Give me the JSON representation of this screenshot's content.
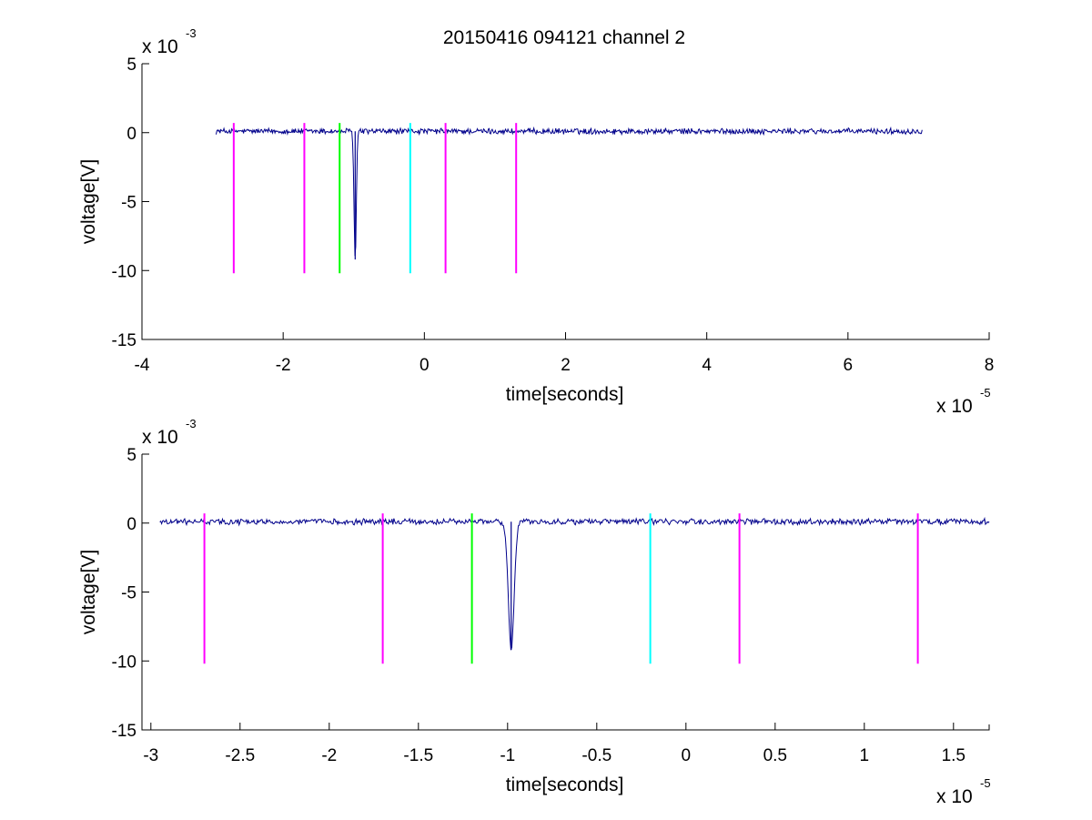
{
  "figure_title": "20150416 094121 channel 2",
  "chart_data": [
    {
      "type": "line",
      "title": "20150416 094121 channel 2",
      "xlabel": "time[seconds]",
      "ylabel": "voltage[V]",
      "xlim": [
        -4e-05,
        8e-05
      ],
      "ylim": [
        -0.015,
        0.005
      ],
      "x_ticks": [
        -4,
        -2,
        0,
        2,
        4,
        6,
        8
      ],
      "x_tick_labels": [
        "-4",
        "-2",
        "0",
        "2",
        "4",
        "6",
        "8"
      ],
      "x_exponent_label": "x 10",
      "x_exponent_power": "-5",
      "y_ticks": [
        5,
        0,
        -5,
        -10,
        -15
      ],
      "y_tick_labels": [
        "5",
        "0",
        "-5",
        "-10",
        "-15"
      ],
      "y_exponent_label": "x 10",
      "y_exponent_power": "-3",
      "series": [
        {
          "color": "#00008B",
          "x_start": -2.95e-05,
          "x_end": 7.05e-05,
          "baseline": 0.0001,
          "noise_amplitude": 0.0003,
          "pulse": {
            "center": -9.8e-06,
            "min": -0.0092
          }
        }
      ],
      "markers": [
        {
          "x": -2.7e-05,
          "y_top": 0.0007,
          "y_bottom": -0.0102,
          "color": "#FF00FF"
        },
        {
          "x": -1.7e-05,
          "y_top": 0.0007,
          "y_bottom": -0.0102,
          "color": "#FF00FF"
        },
        {
          "x": -1.2e-05,
          "y_top": 0.0007,
          "y_bottom": -0.0102,
          "color": "#00FF00"
        },
        {
          "x": -2e-06,
          "y_top": 0.0007,
          "y_bottom": -0.0102,
          "color": "#00FFFF"
        },
        {
          "x": 3e-06,
          "y_top": 0.0007,
          "y_bottom": -0.0102,
          "color": "#FF00FF"
        },
        {
          "x": 1.3e-05,
          "y_top": 0.0007,
          "y_bottom": -0.0102,
          "color": "#FF00FF"
        }
      ]
    },
    {
      "type": "line",
      "xlabel": "time[seconds]",
      "ylabel": "voltage[V]",
      "xlim": [
        -3.05e-05,
        1.7e-05
      ],
      "ylim": [
        -0.015,
        0.005
      ],
      "x_ticks": [
        -3,
        -2.5,
        -2,
        -1.5,
        -1,
        -0.5,
        0,
        0.5,
        1,
        1.5
      ],
      "x_tick_labels": [
        "-3",
        "-2.5",
        "-2",
        "-1.5",
        "-1",
        "-0.5",
        "0",
        "0.5",
        "1",
        "1.5"
      ],
      "x_exponent_label": "x 10",
      "x_exponent_power": "-5",
      "y_ticks": [
        5,
        0,
        -5,
        -10,
        -15
      ],
      "y_tick_labels": [
        "5",
        "0",
        "-5",
        "-10",
        "-15"
      ],
      "y_exponent_label": "x 10",
      "y_exponent_power": "-3",
      "series": [
        {
          "color": "#00008B",
          "x_start": -2.95e-05,
          "x_end": 1.7e-05,
          "baseline": 0.0001,
          "noise_amplitude": 0.0003,
          "pulse": {
            "center": -9.8e-06,
            "min": -0.0092
          }
        }
      ],
      "markers": [
        {
          "x": -2.7e-05,
          "y_top": 0.0007,
          "y_bottom": -0.0102,
          "color": "#FF00FF"
        },
        {
          "x": -1.7e-05,
          "y_top": 0.0007,
          "y_bottom": -0.0102,
          "color": "#FF00FF"
        },
        {
          "x": -1.2e-05,
          "y_top": 0.0007,
          "y_bottom": -0.0102,
          "color": "#00FF00"
        },
        {
          "x": -2e-06,
          "y_top": 0.0007,
          "y_bottom": -0.0102,
          "color": "#00FFFF"
        },
        {
          "x": 3e-06,
          "y_top": 0.0007,
          "y_bottom": -0.0102,
          "color": "#FF00FF"
        },
        {
          "x": 1.3e-05,
          "y_top": 0.0007,
          "y_bottom": -0.0102,
          "color": "#FF00FF"
        }
      ]
    }
  ]
}
